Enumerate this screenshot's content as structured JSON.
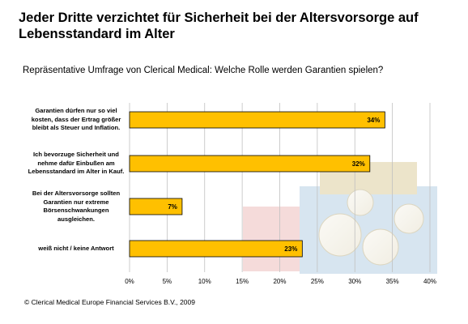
{
  "title": "Jeder Dritte verzichtet für Sicherheit bei der Altersvorsorge auf Lebensstandard im Alter",
  "subtitle": "Repräsentative Umfrage von Clerical Medical: Welche Rolle werden Garantien spielen?",
  "copyright": "© Clerical Medical Europe Financial Services B.V., 2009",
  "colors": {
    "bar": "#ffc000",
    "bar_border": "#000000",
    "grid": "#c0c0c0"
  },
  "chart_data": {
    "type": "bar",
    "orientation": "horizontal",
    "categories": [
      "Garantien dürfen nur so viel kosten, dass der Ertrag größer bleibt als Steuer und Inflation.",
      "Ich bevorzuge Sicherheit und nehme dafür Einbußen am Lebensstandard im Alter in Kauf.",
      "Bei der Altersvorsorge sollten Garantien nur extreme Börsenschwankungen ausgleichen.",
      "weiß nicht / keine Antwort"
    ],
    "values": [
      34,
      32,
      7,
      23
    ],
    "value_labels": [
      "34%",
      "32%",
      "7%",
      "23%"
    ],
    "xlim": [
      0,
      40
    ],
    "ticks": [
      0,
      5,
      10,
      15,
      20,
      25,
      30,
      35,
      40
    ],
    "tick_labels": [
      "0%",
      "5%",
      "10%",
      "15%",
      "20%",
      "25%",
      "30%",
      "35%",
      "40%"
    ],
    "grid": true,
    "legend": "none"
  }
}
